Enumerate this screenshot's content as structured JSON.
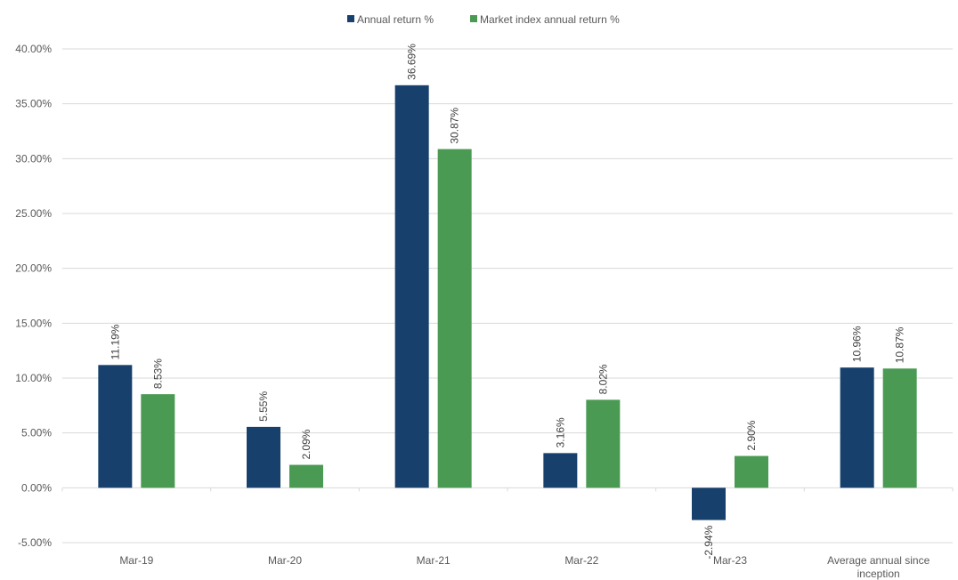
{
  "chart_data": {
    "type": "bar",
    "categories": [
      "Mar-19",
      "Mar-20",
      "Mar-21",
      "Mar-22",
      "Mar-23",
      "Average annual since inception"
    ],
    "series": [
      {
        "name": "Annual return %",
        "values": [
          11.19,
          5.55,
          36.69,
          3.16,
          -2.94,
          10.96
        ],
        "color": "#17406d"
      },
      {
        "name": "Market index annual return %",
        "values": [
          8.53,
          2.09,
          30.87,
          8.02,
          2.9,
          10.87
        ],
        "color": "#4a9a54"
      }
    ],
    "title": "",
    "xlabel": "",
    "ylabel": "",
    "ylim": [
      -5,
      40
    ],
    "yticks": [
      "-5.00%",
      "0.00%",
      "5.00%",
      "10.00%",
      "15.00%",
      "20.00%",
      "25.00%",
      "30.00%",
      "35.00%",
      "40.00%"
    ],
    "data_labels": [
      [
        "11.19%",
        "5.55%",
        "36.69%",
        "3.16%",
        "-2.94%",
        "10.96%"
      ],
      [
        "8.53%",
        "2.09%",
        "30.87%",
        "8.02%",
        "2.90%",
        "10.87%"
      ]
    ],
    "grid": true,
    "legend_position": "top"
  }
}
